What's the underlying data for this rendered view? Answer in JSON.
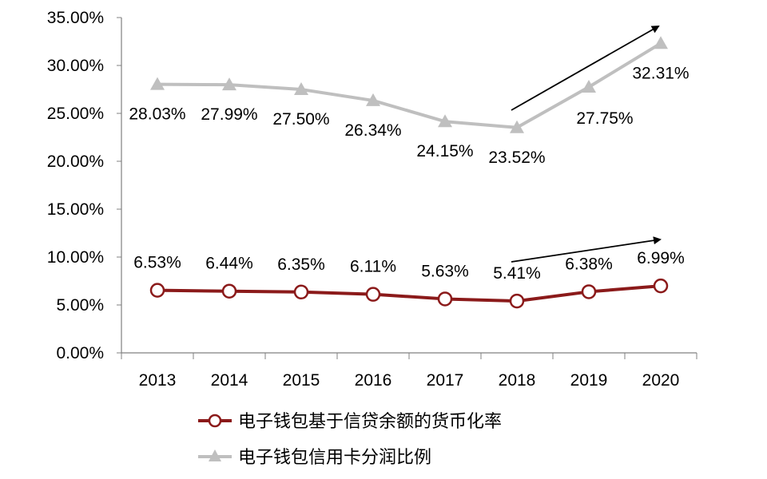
{
  "chart_data": {
    "type": "line",
    "title": "",
    "xlabel": "",
    "ylabel": "",
    "categories": [
      "2013",
      "2014",
      "2015",
      "2016",
      "2017",
      "2018",
      "2019",
      "2020"
    ],
    "ylim": [
      0,
      35
    ],
    "yticks": [
      "0.00%",
      "5.00%",
      "10.00%",
      "15.00%",
      "20.00%",
      "25.00%",
      "30.00%",
      "35.00%"
    ],
    "grid": false,
    "legend_position": "bottom",
    "series": [
      {
        "name": "电子钱包基于信贷余额的货币化率",
        "values": [
          6.53,
          6.44,
          6.35,
          6.11,
          5.63,
          5.41,
          6.38,
          6.99
        ],
        "labels": [
          "6.53%",
          "6.44%",
          "6.35%",
          "6.11%",
          "5.63%",
          "5.41%",
          "6.38%",
          "6.99%"
        ],
        "color": "#8b1a1a",
        "marker": "circle"
      },
      {
        "name": "电子钱包信用卡分润比例",
        "values": [
          28.03,
          27.99,
          27.5,
          26.34,
          24.15,
          23.52,
          27.75,
          32.31
        ],
        "labels": [
          "28.03%",
          "27.99%",
          "27.50%",
          "26.34%",
          "24.15%",
          "23.52%",
          "27.75%",
          "32.31%"
        ],
        "color": "#bfbfbf",
        "marker": "triangle"
      }
    ],
    "annotations": [
      {
        "type": "arrow",
        "series": 1,
        "from_category": "2018",
        "to_category": "2020",
        "color": "#000000"
      },
      {
        "type": "arrow",
        "series": 0,
        "from_category": "2018",
        "to_category": "2020",
        "color": "#000000"
      }
    ]
  }
}
